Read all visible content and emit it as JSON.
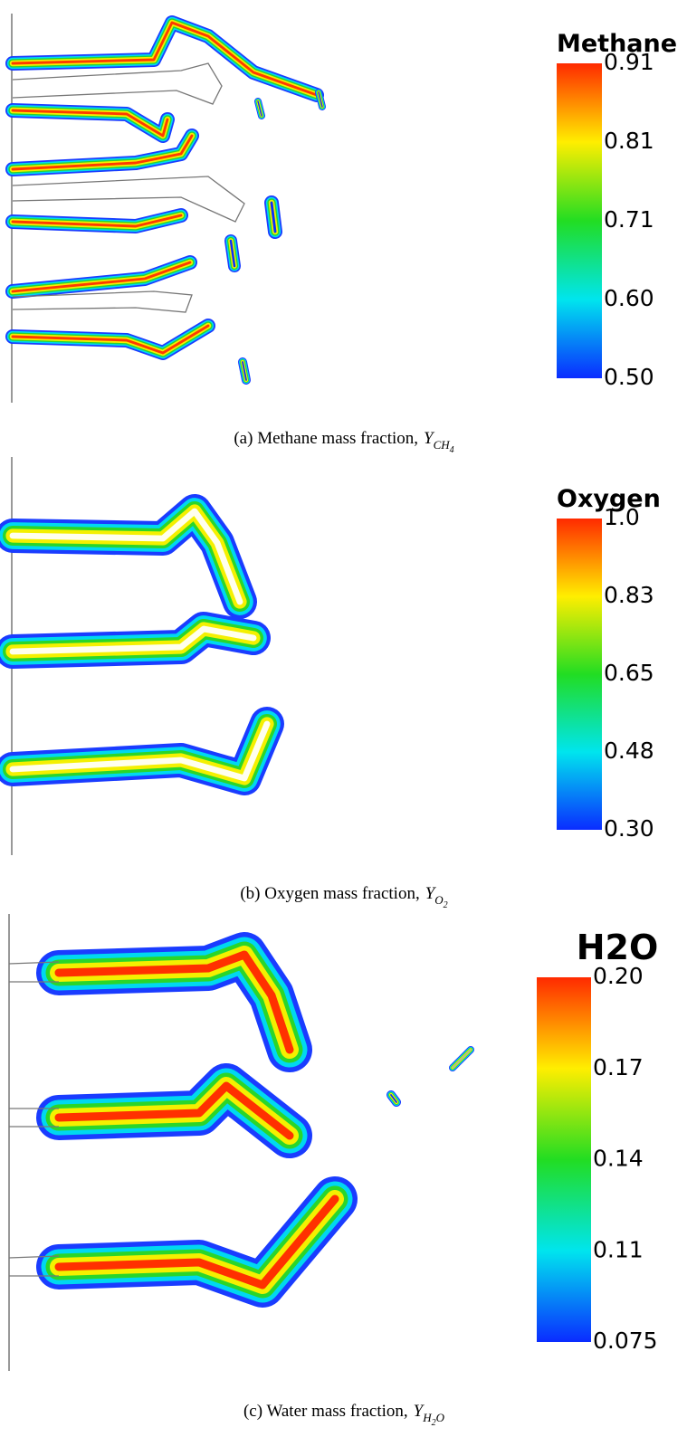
{
  "panels": [
    {
      "colorbar": {
        "title": "Methane",
        "ticks": [
          "0.91",
          "0.81",
          "0.71",
          "0.60",
          "0.50"
        ]
      },
      "caption": {
        "text": "(a) Methane mass fraction,",
        "symbol": "Y",
        "subscript": [
          {
            "t": "CH"
          },
          {
            "t": "4",
            "sub": true
          }
        ]
      }
    },
    {
      "colorbar": {
        "title": "Oxygen",
        "ticks": [
          "1.0",
          "0.83",
          "0.65",
          "0.48",
          "0.30"
        ]
      },
      "caption": {
        "text": "(b) Oxygen mass fraction,",
        "symbol": "Y",
        "subscript": [
          {
            "t": "O"
          },
          {
            "t": "2",
            "sub": true
          }
        ]
      }
    },
    {
      "colorbar": {
        "title": "H2O",
        "ticks": [
          "0.20",
          "0.17",
          "0.14",
          "0.11",
          "0.075"
        ]
      },
      "caption": {
        "text": "(c) Water mass fraction,",
        "symbol": "Y",
        "subscript": [
          {
            "t": "H"
          },
          {
            "t": "2",
            "sub": true
          },
          {
            "t": "O"
          }
        ]
      }
    }
  ]
}
